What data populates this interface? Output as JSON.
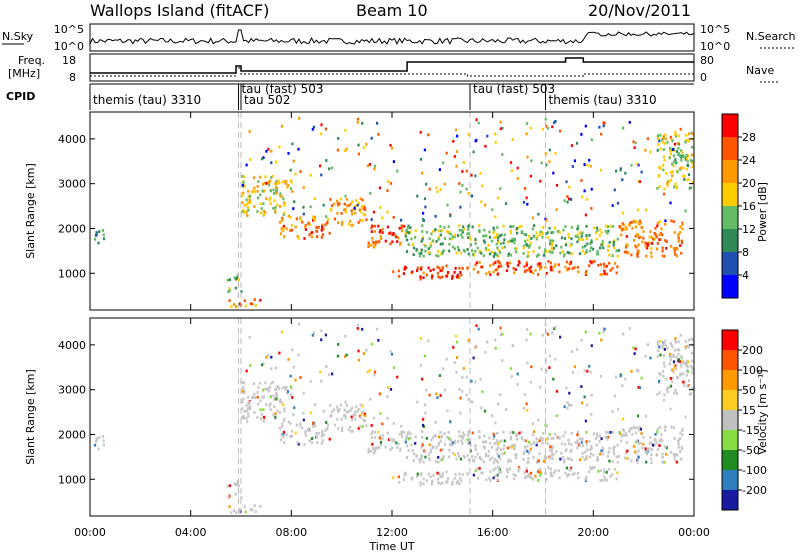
{
  "header": {
    "site": "Wallops Island (fitACF)",
    "beam": "Beam 10",
    "date": "20/Nov/2011"
  },
  "strips": {
    "nsky_label": "N.Sky",
    "nsky_ticks": [
      "10^5",
      "10^0"
    ],
    "nsearch_label": "N.Search",
    "nsearch_ticks": [
      "10^5",
      "10^0"
    ],
    "freq_label": "Freq.",
    "freq_unit": "[MHz]",
    "freq_ticks": [
      "18",
      "8"
    ],
    "nave_label": "Nave",
    "nave_ticks": [
      "80",
      "0"
    ],
    "cpid_label": "CPID",
    "cpid_segments": [
      {
        "label": "themis (tau) 3310",
        "start": 0.0,
        "end": 5.9
      },
      {
        "label": "tau (fast) 503",
        "start": 5.9,
        "end": 6.1
      },
      {
        "label": "tau 502",
        "start": 6.0,
        "end": 6.1
      },
      {
        "label": "tau (fast) 503",
        "start": 15.1,
        "end": 18.1
      },
      {
        "label": "themis (tau) 3310",
        "start": 18.1,
        "end": 24.0
      }
    ]
  },
  "panels": {
    "power": {
      "ylabel": "Slant Range [km]",
      "yticks": [
        "1000",
        "2000",
        "3000",
        "4000"
      ],
      "cbar_label": "Power [dB]",
      "cbar_ticks": [
        "28",
        "24",
        "20",
        "16",
        "12",
        "8",
        "4"
      ]
    },
    "velocity": {
      "ylabel": "Slant Range [km]",
      "yticks": [
        "1000",
        "2000",
        "3000",
        "4000"
      ],
      "cbar_label": "Velocity [m s⁻¹]",
      "cbar_ticks": [
        "200",
        "100",
        "50",
        "15",
        "-15",
        "-50",
        "-100",
        "-200"
      ]
    }
  },
  "xaxis": {
    "label": "Time UT",
    "ticks": [
      "00:00",
      "04:00",
      "08:00",
      "12:00",
      "16:00",
      "20:00",
      "00:00"
    ]
  },
  "chart_data": {
    "type": "heatmap",
    "x_range_hours": [
      0,
      24
    ],
    "y_range_km": [
      180,
      4600
    ],
    "power_colors": [
      "#0000ff",
      "#1f4fb0",
      "#2e8b57",
      "#66bb66",
      "#ffcc00",
      "#ff9900",
      "#ff5500",
      "#ff0000"
    ],
    "velocity_colors": [
      "#1a1aa0",
      "#2f7fbf",
      "#228b22",
      "#88dd44",
      "#c0c0c0",
      "#ffcc22",
      "#ff9900",
      "#ff5500",
      "#ff0000"
    ],
    "ground_scatter_color": "#c8c8c8",
    "echo_bands": [
      {
        "t0": 0.1,
        "t1": 0.6,
        "r0": 1700,
        "r1": 2000,
        "power": 10
      },
      {
        "t0": 5.4,
        "t1": 6.0,
        "r0": 600,
        "r1": 1000,
        "power": 14
      },
      {
        "t0": 5.5,
        "t1": 6.8,
        "r0": 280,
        "r1": 450,
        "power": 24
      },
      {
        "t0": 6.0,
        "t1": 8.0,
        "r0": 2300,
        "r1": 3200,
        "power": 18
      },
      {
        "t0": 7.5,
        "t1": 9.5,
        "r0": 1800,
        "r1": 2300,
        "power": 24
      },
      {
        "t0": 9.5,
        "t1": 11.0,
        "r0": 2100,
        "r1": 2700,
        "power": 22
      },
      {
        "t0": 11.0,
        "t1": 12.5,
        "r0": 1600,
        "r1": 2100,
        "power": 26
      },
      {
        "t0": 12.0,
        "t1": 15.0,
        "r0": 900,
        "r1": 1200,
        "power": 28
      },
      {
        "t0": 12.5,
        "t1": 21.0,
        "r0": 1400,
        "r1": 2100,
        "power": 14
      },
      {
        "t0": 15.0,
        "t1": 21.0,
        "r0": 1000,
        "r1": 1300,
        "power": 26
      },
      {
        "t0": 21.0,
        "t1": 23.5,
        "r0": 1400,
        "r1": 2200,
        "power": 24
      },
      {
        "t0": 22.5,
        "t1": 23.9,
        "r0": 2900,
        "r1": 4200,
        "power": 16
      }
    ]
  }
}
